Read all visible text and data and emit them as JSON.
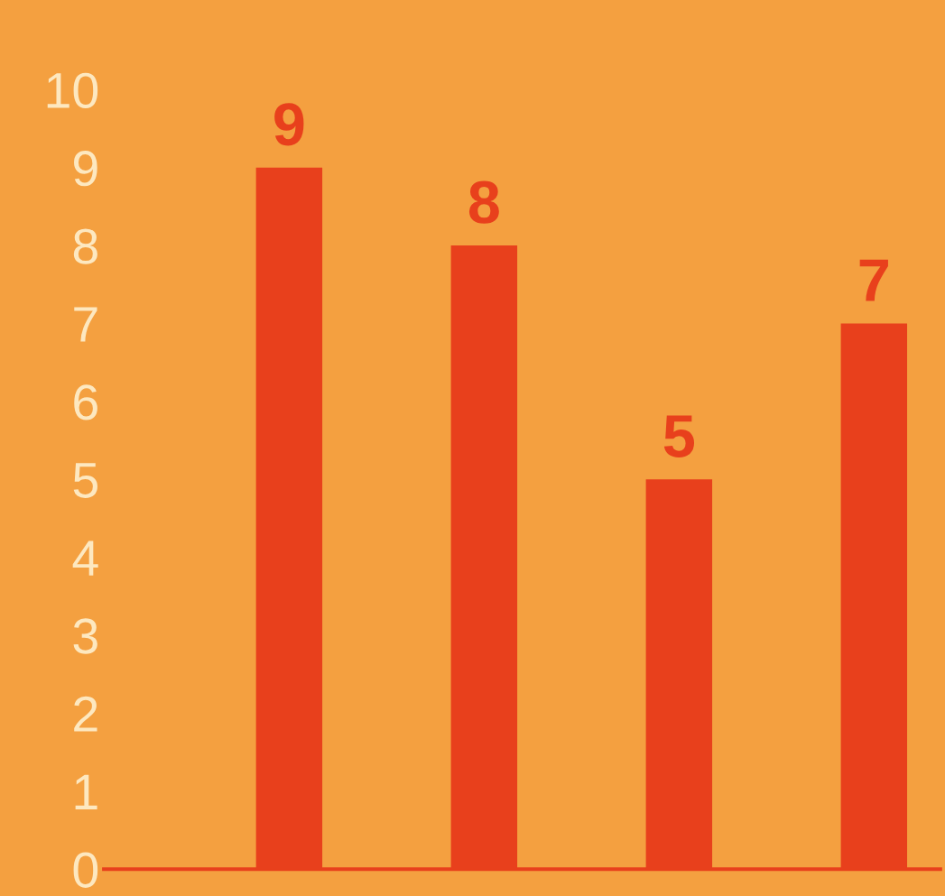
{
  "chart_data": {
    "type": "bar",
    "categories": [
      null,
      null,
      null,
      null
    ],
    "values": [
      9,
      8,
      5,
      7
    ],
    "color": "#e8401c",
    "ylim": [
      0,
      10
    ],
    "yticks": [
      0,
      1,
      2,
      3,
      4,
      5,
      6,
      7,
      8,
      9,
      10
    ],
    "data_labels": true,
    "tick_labels": "y",
    "grid": false,
    "legend": false
  }
}
